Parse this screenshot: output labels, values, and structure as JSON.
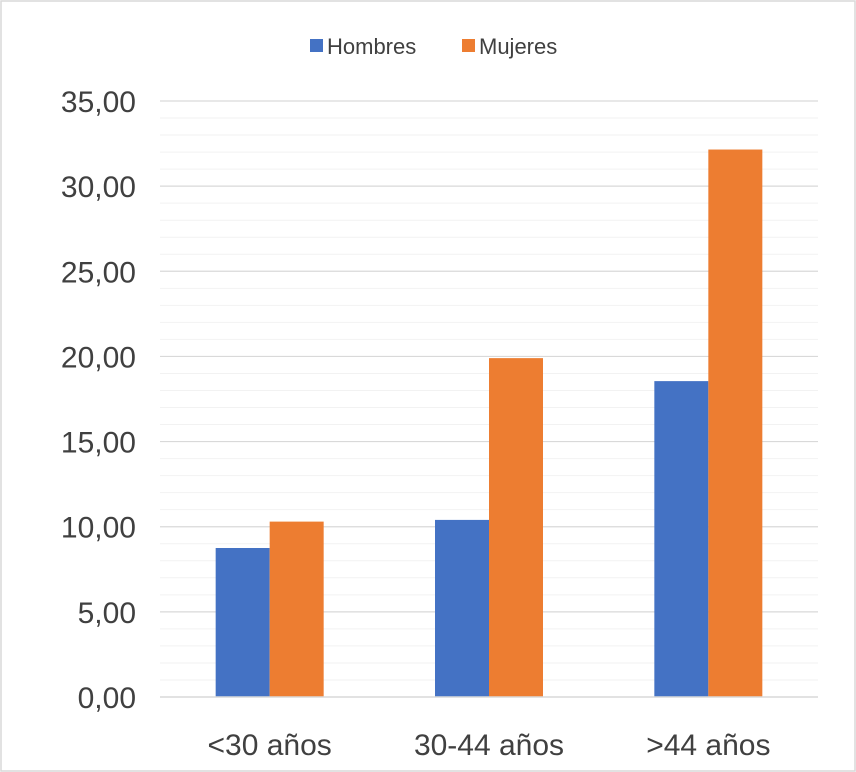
{
  "chart_data": {
    "type": "bar",
    "categories": [
      "<30 años",
      "30-44 años",
      ">44 años"
    ],
    "series": [
      {
        "name": "Hombres",
        "color": "#4472C4",
        "values": [
          8.75,
          10.4,
          18.55
        ]
      },
      {
        "name": "Mujeres",
        "color": "#ED7D31",
        "values": [
          10.3,
          19.9,
          32.15
        ]
      }
    ],
    "ylim": [
      0,
      35
    ],
    "y_major_ticks": [
      0,
      5,
      10,
      15,
      20,
      25,
      30,
      35
    ],
    "y_tick_labels": [
      "0,00",
      "5,00",
      "10,00",
      "15,00",
      "20,00",
      "25,00",
      "30,00",
      "35,00"
    ],
    "y_minor_step": 1,
    "grid": true,
    "legend_position": "top",
    "title": "",
    "xlabel": "",
    "ylabel": ""
  }
}
